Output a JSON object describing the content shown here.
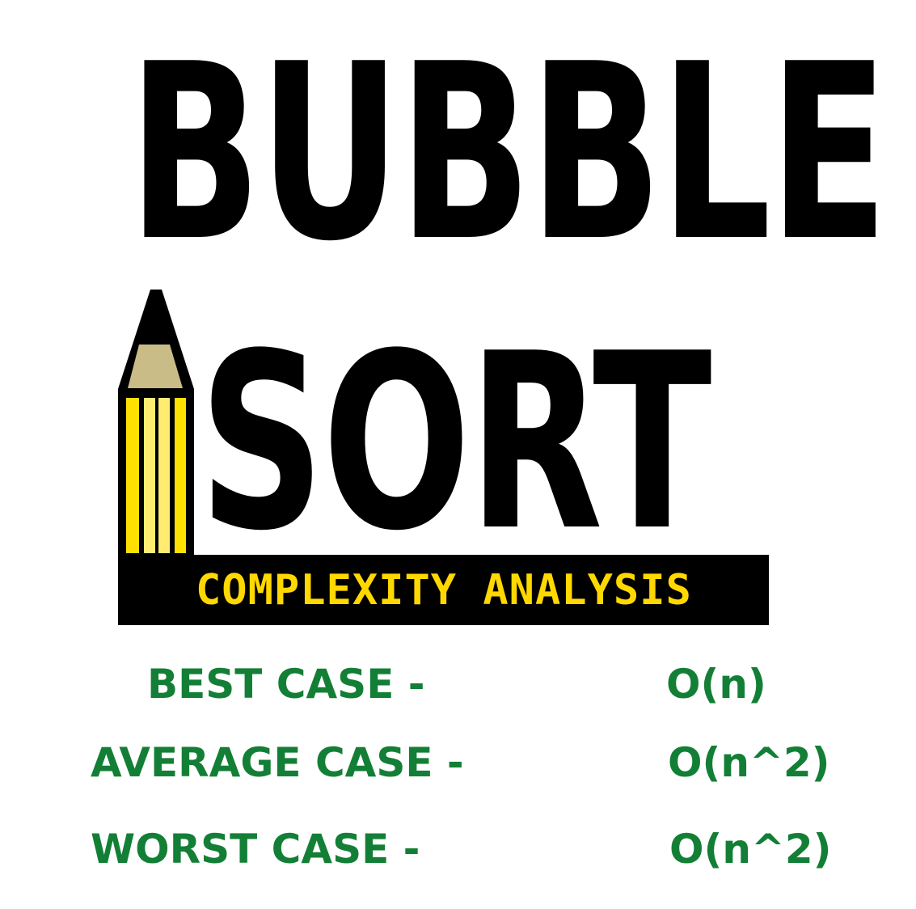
{
  "title": {
    "line1": "BUBBLE",
    "line2": "SORT"
  },
  "banner": {
    "text": "COMPLEXITY ANALYSIS"
  },
  "cases": [
    {
      "label": "BEST CASE -",
      "value": "O(n)"
    },
    {
      "label": "AVERAGE CASE -",
      "value": "O(n^2)"
    },
    {
      "label": "WORST CASE -",
      "value": "O(n^2)"
    }
  ],
  "colors": {
    "title": "#000000",
    "banner_bg": "#000000",
    "banner_text": "#ffd800",
    "case_text": "#137f36",
    "pencil_yellow": "#ffe000",
    "pencil_light_yellow": "#ffec70",
    "pencil_wood": "#c9bc87"
  },
  "icons": {
    "pencil": "pencil-icon"
  }
}
